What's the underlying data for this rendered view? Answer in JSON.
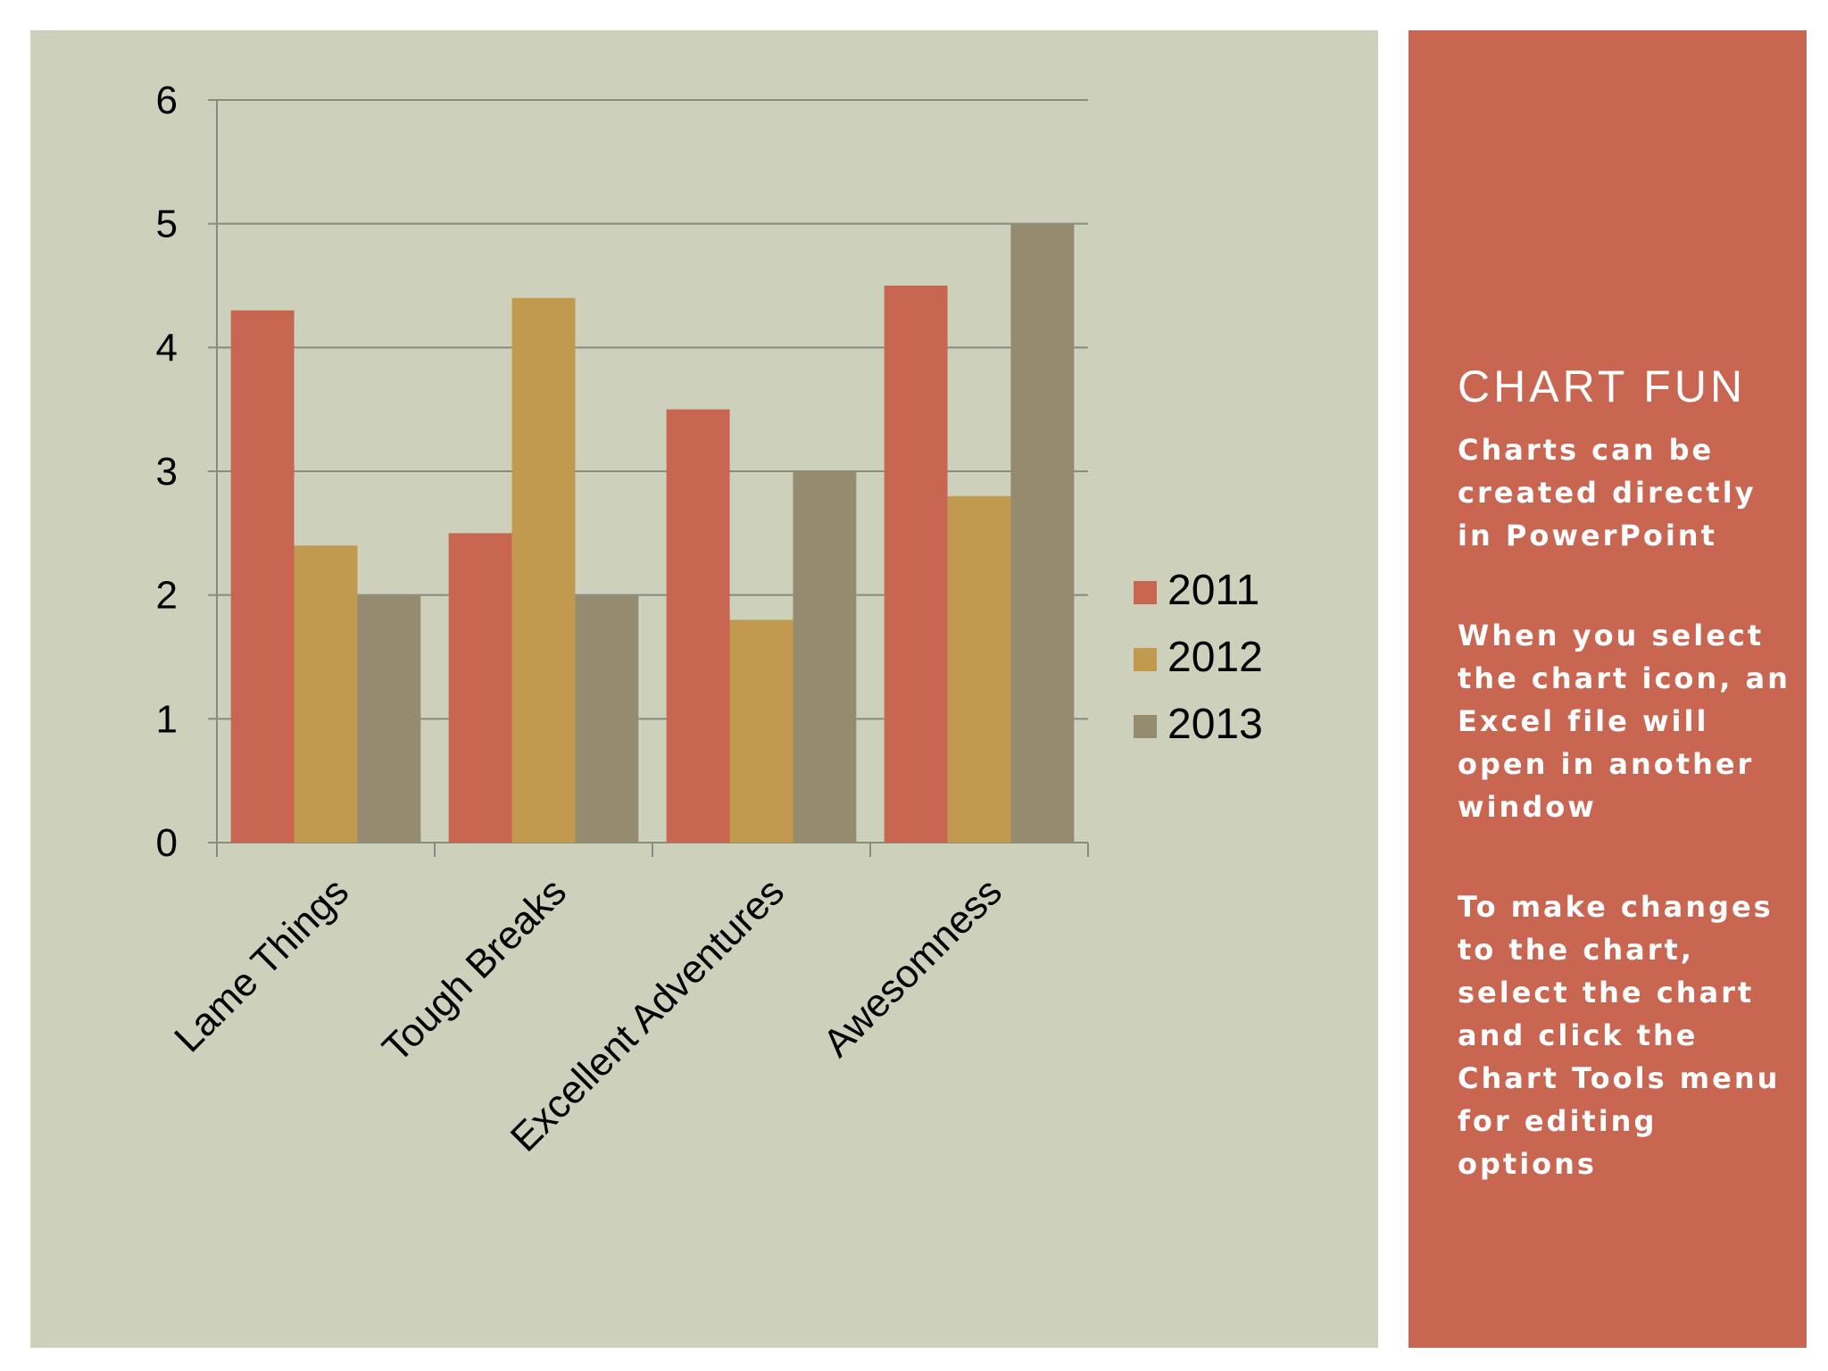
{
  "sidebar": {
    "title": "CHART FUN",
    "paragraphs": [
      "Charts can be created directly in PowerPoint",
      "When you select the chart icon, an Excel file will open in another window",
      "To make changes to the chart, select the chart and click the Chart Tools menu for editing options"
    ]
  },
  "colors": {
    "panel_bg": "#cdd0bb",
    "sidebar_bg": "#c86652",
    "series": [
      "#c86652",
      "#c19a50",
      "#958c70"
    ]
  },
  "chart_data": {
    "type": "bar",
    "title": "",
    "xlabel": "",
    "ylabel": "",
    "categories": [
      "Lame Things",
      "Tough Breaks",
      "Excellent Adventures",
      "Awesomness"
    ],
    "series": [
      {
        "name": "2011",
        "values": [
          4.3,
          2.5,
          3.5,
          4.5
        ]
      },
      {
        "name": "2012",
        "values": [
          2.4,
          4.4,
          1.8,
          2.8
        ]
      },
      {
        "name": "2013",
        "values": [
          2,
          2,
          3,
          5
        ]
      }
    ],
    "ylim": [
      0,
      6
    ],
    "yticks": [
      "0",
      "1",
      "2",
      "3",
      "4",
      "5",
      "6"
    ],
    "grid": true,
    "legend_position": "right"
  }
}
